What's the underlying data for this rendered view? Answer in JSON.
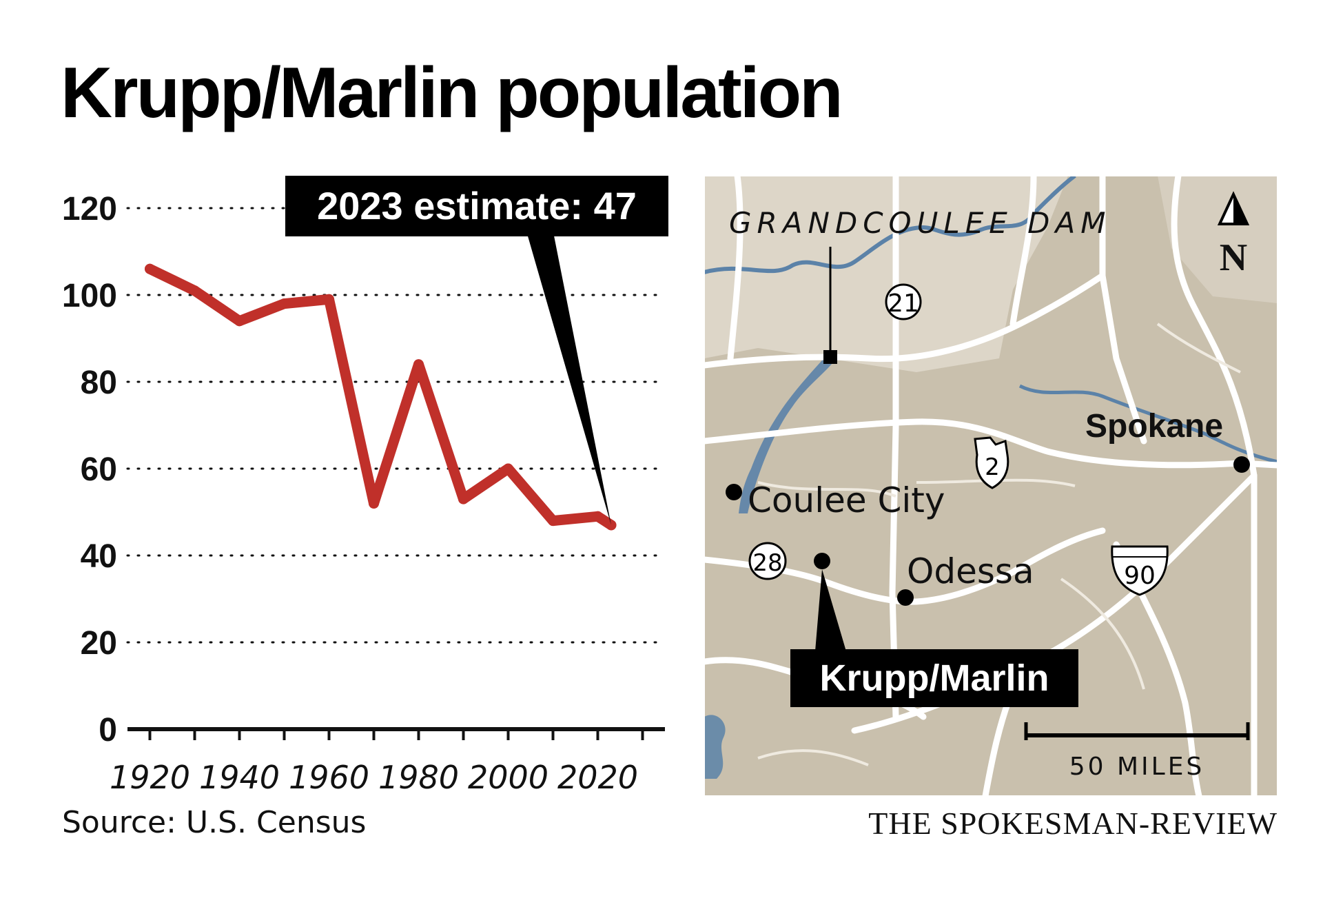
{
  "title": "Krupp/Marlin population",
  "source": "Source: U.S. Census",
  "credit": "THE SPOKESMAN-REVIEW",
  "colors": {
    "line": "#c0302a",
    "ink": "#000000",
    "map_land": "#c9c0ad",
    "map_land_light": "#ddd6c8",
    "map_road": "#ffffff",
    "map_water": "#5b82a8"
  },
  "chart_data": {
    "type": "line",
    "title": "Krupp/Marlin population",
    "xlabel": "",
    "ylabel": "",
    "xlim": [
      1915,
      2035
    ],
    "ylim": [
      0,
      120
    ],
    "x_ticks": [
      1920,
      1940,
      1960,
      1980,
      2000,
      2020
    ],
    "y_ticks": [
      0,
      20,
      40,
      60,
      80,
      100,
      120
    ],
    "grid": "horizontal dotted",
    "series": [
      {
        "x": [
          1920,
          1930,
          1940,
          1950,
          1960,
          1970,
          1980,
          1990,
          2000,
          2010,
          2020,
          2023
        ],
        "y": [
          106,
          101,
          94,
          98,
          99,
          52,
          84,
          53,
          60,
          48,
          49,
          47
        ]
      }
    ],
    "annotation": {
      "x": 2023,
      "y": 47,
      "text": "2023 estimate: 47"
    }
  },
  "map": {
    "labels": {
      "dam": "GRANDCOULEE DAM",
      "spokane": "Spokane",
      "coulee_city": "Coulee City",
      "odessa": "Odessa",
      "krupp": "Krupp/Marlin"
    },
    "highways": {
      "h21": "21",
      "h2": "2",
      "h28": "28",
      "i90": "90"
    },
    "north": "N",
    "scale": "50 MILES"
  }
}
